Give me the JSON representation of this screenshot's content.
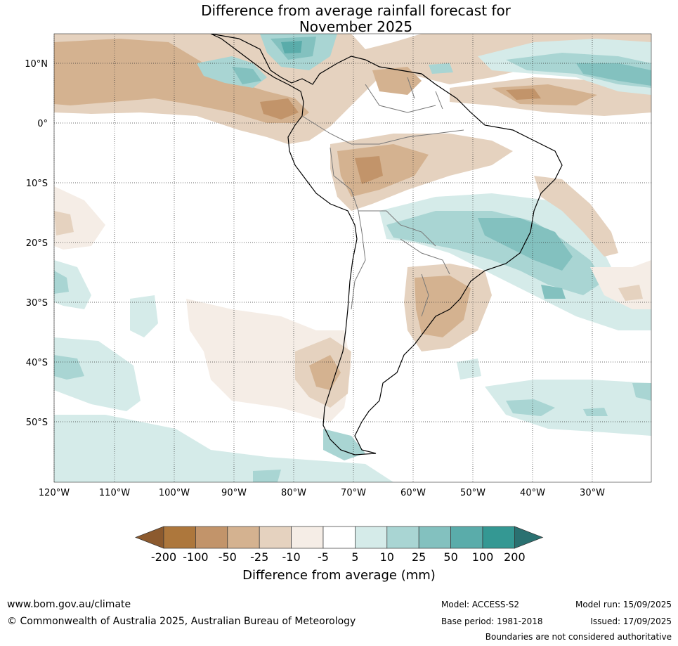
{
  "title_line1": "Difference from average rainfall forecast for",
  "title_line2": "November 2025",
  "lat_labels": [
    "10°N",
    "0°",
    "10°S",
    "20°S",
    "30°S",
    "40°S",
    "50°S"
  ],
  "lon_labels": [
    "120°W",
    "110°W",
    "100°W",
    "90°W",
    "80°W",
    "70°W",
    "60°W",
    "50°W",
    "40°W",
    "30°W"
  ],
  "colorbar": {
    "labels": [
      "-200",
      "-100",
      "-50",
      "-25",
      "-10",
      "-5",
      "5",
      "10",
      "25",
      "50",
      "100",
      "200"
    ],
    "colors": [
      "#8c5a2e",
      "#ad773c",
      "#c2946a",
      "#d4b290",
      "#e5d2bf",
      "#f5ede6",
      "#ffffff",
      "#d5ebe9",
      "#a9d5d3",
      "#83c1bf",
      "#5aacaa",
      "#349893",
      "#2a7171"
    ],
    "title": "Difference from average (mm)"
  },
  "footer": {
    "url": "www.bom.gov.au/climate",
    "copyright": "© Commonwealth of Australia 2025, Australian Bureau of Meteorology",
    "model": "Model: ACCESS-S2",
    "base_period": "Base period: 1981-2018",
    "model_run": "Model run: 15/09/2025",
    "issued": "Issued: 17/09/2025",
    "disclaimer": "Boundaries are not considered authoritative"
  }
}
